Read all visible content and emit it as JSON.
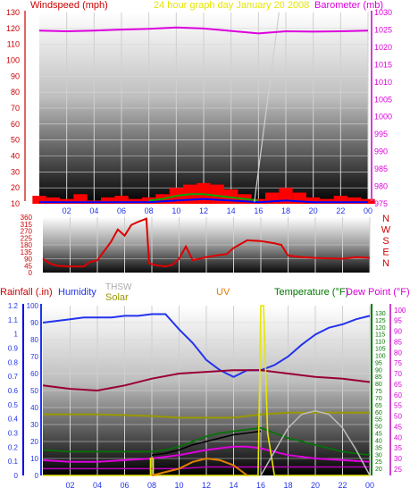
{
  "header": {
    "left_label": "Windspeed (mph)",
    "center_label": "24 hour graph day   January 20 2008",
    "right_label": "Barometer (mb)"
  },
  "colors": {
    "wind_label": "#cc0000",
    "title": "#e6e600",
    "barometer": "#dd00dd",
    "wind_bars": "#ff0000",
    "wind_avg": "#0000ff",
    "wind_gust_green": "#00aa00",
    "rain": "#0000ff",
    "humidity": "#2233ee",
    "thsw": "#bbbbbb",
    "solar": "#999900",
    "uv": "#e6e600",
    "uv_label": "#e08000",
    "temperature": "#007700",
    "temp_line": "#000000",
    "dewpoint": "#dd00dd",
    "dew_line": "#bb00bb",
    "wind_dir": "#dd0000",
    "chill_line": "#990033"
  },
  "chart_data": [
    {
      "type": "line",
      "title": "24 hour graph day   January 20 2008",
      "x_ticks": [
        "02",
        "04",
        "06",
        "08",
        "10",
        "12",
        "14",
        "16",
        "18",
        "20",
        "22",
        "00"
      ],
      "left_axis": {
        "label": "Windspeed (mph)",
        "ylim": [
          10,
          130
        ],
        "ticks": [
          10,
          20,
          30,
          40,
          50,
          60,
          70,
          80,
          90,
          100,
          110,
          120,
          130
        ]
      },
      "right_axis": {
        "label": "Barometer (mb)",
        "ylim": [
          975,
          1030
        ],
        "ticks": [
          975,
          980,
          985,
          990,
          995,
          1000,
          1005,
          1010,
          1015,
          1020,
          1025,
          1030
        ]
      },
      "series": [
        {
          "name": "Barometer (mb)",
          "axis": "right",
          "x": [
            0,
            2,
            4,
            6,
            8,
            10,
            12,
            14,
            16,
            18,
            20,
            22,
            24
          ],
          "values": [
            1024.8,
            1024.6,
            1024.8,
            1025.1,
            1025.3,
            1025.7,
            1025.4,
            1024.7,
            1024.0,
            1024.6,
            1024.5,
            1024.6,
            1024.8
          ]
        }
      ],
      "wind_bars": {
        "x": [
          0,
          1,
          2,
          3,
          4,
          5,
          6,
          7,
          8,
          9,
          10,
          11,
          12,
          13,
          14,
          15,
          16,
          17,
          18,
          19,
          20,
          21,
          22,
          23,
          24
        ],
        "values": [
          15,
          14,
          13,
          16,
          12,
          14,
          15,
          13,
          14,
          16,
          20,
          22,
          23,
          22,
          19,
          16,
          13,
          17,
          20,
          17,
          14,
          13,
          15,
          14,
          13
        ]
      },
      "wind_avg": {
        "x": [
          0,
          2,
          4,
          6,
          8,
          10,
          12,
          14,
          16,
          18,
          20,
          22,
          24
        ],
        "values": [
          11,
          11,
          11,
          11,
          11,
          12,
          13,
          12,
          11,
          12,
          11,
          11,
          11
        ]
      },
      "wind_green": {
        "x": [
          8,
          9,
          10,
          11,
          12,
          13,
          14,
          15,
          16
        ],
        "values": [
          12,
          13,
          15,
          16,
          16,
          15,
          14,
          13,
          12
        ]
      },
      "wind_gray_line": {
        "x": [
          15.7,
          17.5
        ],
        "values": [
          11,
          130
        ]
      }
    },
    {
      "type": "line",
      "title": "",
      "x_ticks": [],
      "left_axis": {
        "label": "",
        "ylim": [
          0,
          360
        ],
        "ticks": [
          0,
          45,
          90,
          135,
          180,
          225,
          270,
          315,
          360
        ]
      },
      "right_axis": {
        "label": "",
        "compass": [
          "N",
          "W",
          "S",
          "E",
          "N"
        ]
      },
      "series": [
        {
          "name": "",
          "x": [
            0,
            0.5,
            1,
            2,
            3,
            3.5,
            4,
            5,
            5.5,
            6,
            6.5,
            7,
            7.3,
            7.6,
            7.8,
            8,
            8.5,
            9,
            9.5,
            10,
            10.5,
            11,
            12,
            13,
            13.5,
            14,
            15,
            16,
            17,
            17.5,
            18,
            19,
            20,
            21,
            22,
            23,
            24
          ],
          "values": [
            90,
            60,
            45,
            40,
            40,
            70,
            80,
            200,
            280,
            240,
            310,
            330,
            340,
            350,
            60,
            55,
            45,
            40,
            50,
            90,
            170,
            80,
            100,
            115,
            120,
            160,
            210,
            205,
            190,
            180,
            110,
            100,
            95,
            92,
            90,
            100,
            95
          ]
        }
      ]
    },
    {
      "type": "line",
      "title": "",
      "x_ticks": [
        "02",
        "04",
        "06",
        "08",
        "10",
        "12",
        "14",
        "16",
        "18",
        "20",
        "22",
        "00"
      ],
      "axes": {
        "rainfall": {
          "label": "Rainfall (.in)",
          "ylim": [
            0,
            1.2
          ],
          "ticks": [
            "0",
            "0.1",
            "0.2",
            "0.3",
            "0.4",
            "0.5",
            "0.6",
            "0.7",
            "0.8",
            "0.9",
            "1",
            "1.1",
            "1.2"
          ]
        },
        "humidity": {
          "label": "Humidity",
          "ylim": [
            0,
            100
          ],
          "ticks": [
            "0",
            "10",
            "20",
            "30",
            "40",
            "50",
            "60",
            "70",
            "80",
            "90",
            "100"
          ]
        },
        "thsw": {
          "label": "THSW"
        },
        "solar": {
          "label": "Solar"
        },
        "uv": {
          "label": "UV"
        },
        "temperature": {
          "label": "Temperature (°F)",
          "ylim": [
            15,
            135
          ],
          "ticks": [
            "20",
            "25",
            "30",
            "35",
            "40",
            "45",
            "50",
            "55",
            "60",
            "65",
            "70",
            "75",
            "80",
            "85",
            "90",
            "95",
            "100",
            "105",
            "110",
            "115",
            "120",
            "125",
            "130"
          ]
        },
        "dewpoint": {
          "label": "Dew Point (°F)",
          "ylim": [
            22,
            102
          ],
          "ticks": [
            "25",
            "30",
            "35",
            "40",
            "45",
            "50",
            "55",
            "60",
            "65",
            "70",
            "75",
            "80",
            "85",
            "90",
            "95",
            "100"
          ]
        }
      },
      "series": [
        {
          "name": "Humidity",
          "axis": "humidity",
          "x": [
            0,
            1,
            2,
            3,
            4,
            5,
            6,
            7,
            8,
            9,
            10,
            11,
            12,
            13,
            14,
            15,
            16,
            17,
            18,
            19,
            20,
            21,
            22,
            23,
            24
          ],
          "values": [
            90,
            91,
            92,
            93,
            93,
            93,
            94,
            94,
            95,
            95,
            86,
            78,
            68,
            62,
            58,
            62,
            62,
            65,
            70,
            77,
            83,
            87,
            89,
            92,
            94
          ]
        },
        {
          "name": "",
          "axis": "humidity",
          "x": [
            0,
            2,
            4,
            6,
            8,
            10,
            12,
            14,
            16,
            18,
            20,
            22,
            24
          ],
          "values": [
            53,
            51,
            50,
            53,
            57,
            60,
            61,
            62,
            62,
            60,
            58,
            57,
            55
          ]
        },
        {
          "name": "Solar",
          "axis": "humidity",
          "x": [
            0,
            4,
            8,
            10,
            12,
            14,
            15,
            16,
            18,
            20,
            22,
            24
          ],
          "values": [
            36,
            36,
            35,
            34,
            34,
            34,
            35,
            36,
            37,
            37,
            37,
            37
          ]
        },
        {
          "name": "Temperature (°F)",
          "axis": "humidity",
          "x": [
            0,
            2,
            4,
            6,
            8,
            9,
            10,
            11,
            12,
            13,
            14,
            15,
            16,
            17,
            18,
            19,
            20,
            21,
            22,
            23,
            24
          ],
          "values": [
            15,
            14,
            14,
            14,
            14,
            15,
            17,
            20,
            23,
            25,
            26,
            27,
            28,
            25,
            22,
            20,
            18,
            16,
            14,
            13,
            12
          ]
        },
        {
          "name": "",
          "axis": "humidity",
          "x": [
            8,
            9,
            10,
            11,
            12,
            13,
            14,
            15,
            16
          ],
          "values": [
            12,
            13,
            15,
            18,
            20,
            22,
            24,
            25,
            26
          ]
        },
        {
          "name": "Dew Point (°F)",
          "axis": "humidity",
          "x": [
            0,
            2,
            4,
            6,
            8,
            10,
            12,
            14,
            15,
            16,
            18,
            20,
            22,
            24
          ],
          "values": [
            9,
            8,
            8,
            9,
            10,
            12,
            15,
            17,
            17,
            16,
            12,
            10,
            9,
            8
          ]
        },
        {
          "name": "",
          "axis": "humidity",
          "x": [
            0,
            4,
            8,
            10,
            12,
            14,
            16,
            18,
            20,
            22,
            24
          ],
          "values": [
            4,
            4,
            4,
            4,
            5,
            5,
            5,
            5,
            5,
            5,
            5
          ]
        },
        {
          "name": "UV",
          "axis": "humidity",
          "x": [
            0,
            7.9,
            7.9,
            8.1,
            8.1,
            15.8,
            16,
            16.2,
            16.5,
            17,
            24
          ],
          "values": [
            0,
            0,
            10,
            10,
            0,
            0,
            100,
            100,
            25,
            0,
            0
          ]
        },
        {
          "name": "",
          "axis": "humidity",
          "x": [
            8,
            10,
            11,
            12,
            13,
            14,
            15
          ],
          "values": [
            0,
            4,
            8,
            10,
            9,
            6,
            0
          ]
        },
        {
          "name": "THSW",
          "axis": "humidity",
          "x": [
            16,
            17,
            18,
            19,
            20,
            21,
            22,
            23,
            24
          ],
          "values": [
            0,
            14,
            28,
            36,
            38,
            36,
            28,
            15,
            0
          ]
        }
      ]
    }
  ]
}
